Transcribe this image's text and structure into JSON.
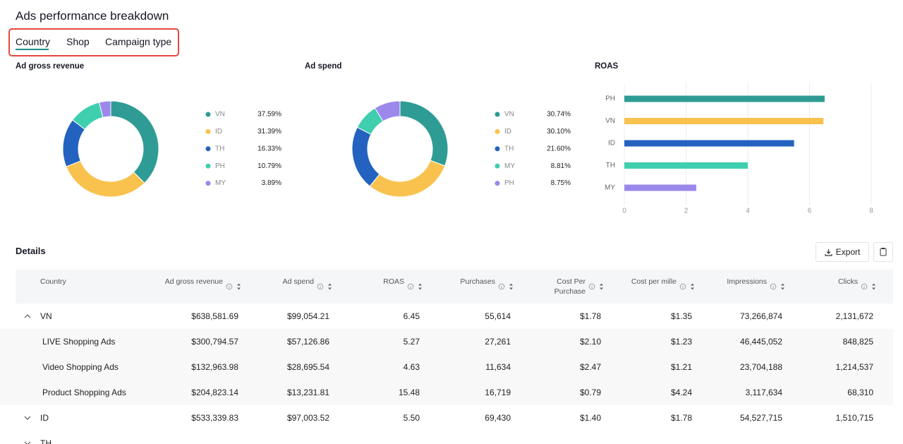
{
  "header": {
    "title": "Ads performance breakdown"
  },
  "tabs": [
    "Country",
    "Shop",
    "Campaign type"
  ],
  "chart_data": [
    {
      "type": "pie",
      "title": "Ad gross revenue",
      "categories": [
        "VN",
        "ID",
        "TH",
        "PH",
        "MY"
      ],
      "values": [
        37.59,
        31.39,
        16.33,
        10.79,
        3.89
      ],
      "value_labels": [
        "37.59%",
        "31.39%",
        "16.33%",
        "10.79%",
        "3.89%"
      ],
      "colors": [
        "#2e9c94",
        "#f9c24f",
        "#2462bf",
        "#3fcfae",
        "#9c88ea"
      ]
    },
    {
      "type": "pie",
      "title": "Ad spend",
      "categories": [
        "VN",
        "ID",
        "TH",
        "MY",
        "PH"
      ],
      "values": [
        30.74,
        30.1,
        21.6,
        8.81,
        8.75
      ],
      "value_labels": [
        "30.74%",
        "30.10%",
        "21.60%",
        "8.81%",
        "8.75%"
      ],
      "colors": [
        "#2e9c94",
        "#f9c24f",
        "#2462bf",
        "#3fcfae",
        "#9c88ea"
      ]
    },
    {
      "type": "bar",
      "orientation": "horizontal",
      "title": "ROAS",
      "categories": [
        "PH",
        "VN",
        "ID",
        "TH",
        "MY"
      ],
      "values": [
        6.49,
        6.45,
        5.5,
        4.0,
        2.33
      ],
      "colors": [
        "#2e9c94",
        "#f9c24f",
        "#2462bf",
        "#3fcfae",
        "#9c88ea"
      ],
      "xlim": [
        0,
        8
      ],
      "xticks": [
        0,
        2,
        4,
        6,
        8
      ],
      "grid": true
    }
  ],
  "details": {
    "title": "Details",
    "export": "Export"
  },
  "table": {
    "columns": [
      "Country",
      "Ad gross revenue",
      "Ad spend",
      "ROAS",
      "Purchases",
      "Cost Per Purchase",
      "Cost per mille",
      "Impressions",
      "Clicks"
    ],
    "rows": [
      {
        "cells": [
          "VN",
          "$638,581.69",
          "$99,054.21",
          "6.45",
          "55,614",
          "$1.78",
          "$1.35",
          "73,266,874",
          "2,131,672"
        ],
        "children": [
          [
            "LIVE Shopping Ads",
            "$300,794.57",
            "$57,126.86",
            "5.27",
            "27,261",
            "$2.10",
            "$1.23",
            "46,445,052",
            "848,825"
          ],
          [
            "Video Shopping Ads",
            "$132,963.98",
            "$28,695.54",
            "4.63",
            "11,634",
            "$2.47",
            "$1.21",
            "23,704,188",
            "1,214,537"
          ],
          [
            "Product Shopping Ads",
            "$204,823.14",
            "$13,231.81",
            "15.48",
            "16,719",
            "$0.79",
            "$4.24",
            "3,117,634",
            "68,310"
          ]
        ]
      },
      {
        "cells": [
          "ID",
          "$533,339.83",
          "$97,003.52",
          "5.50",
          "69,430",
          "$1.40",
          "$1.78",
          "54,527,715",
          "1,510,715"
        ]
      },
      {
        "cells": [
          "TH"
        ]
      }
    ]
  }
}
